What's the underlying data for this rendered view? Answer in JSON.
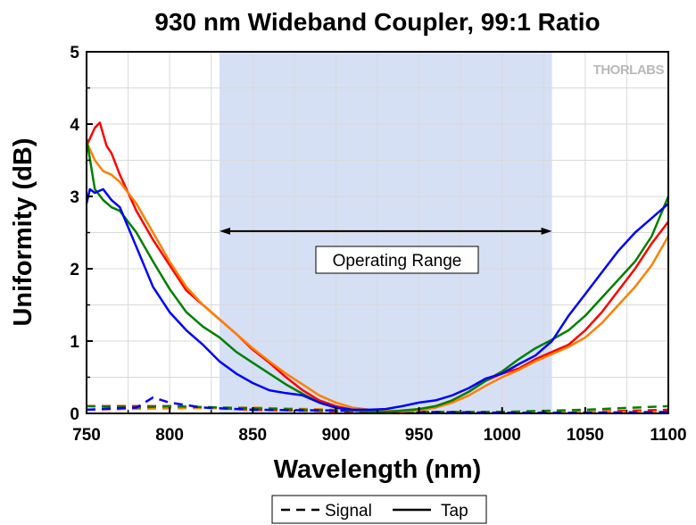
{
  "chart_data": {
    "type": "line",
    "title": "930 nm Wideband Coupler, 99:1 Ratio",
    "xlabel": "Wavelength (nm)",
    "ylabel": "Uniformity (dB)",
    "xlim": [
      750,
      1100
    ],
    "ylim": [
      0,
      5
    ],
    "xticks": [
      750,
      800,
      850,
      900,
      950,
      1000,
      1050,
      1100
    ],
    "yticks": [
      0,
      1,
      2,
      3,
      4,
      5
    ],
    "grid": true,
    "logo": "THORLABS",
    "shaded_region": {
      "x": [
        830,
        1030
      ],
      "color": "#d5e0f5"
    },
    "annotation": {
      "text": "Operating Range",
      "x": [
        830,
        1030
      ],
      "y": 2.52
    },
    "legend": {
      "position": "bottom",
      "entries": [
        {
          "label": "Signal",
          "style": "dashed"
        },
        {
          "label": "Tap",
          "style": "solid"
        }
      ]
    },
    "series": [
      {
        "color": "#ff0000",
        "style": "solid",
        "x": [
          750,
          755,
          758,
          762,
          765,
          770,
          775,
          780,
          790,
          800,
          810,
          820,
          830,
          840,
          850,
          860,
          870,
          880,
          890,
          900,
          910,
          920,
          930,
          940,
          950,
          960,
          970,
          980,
          990,
          1000,
          1010,
          1020,
          1030,
          1040,
          1050,
          1060,
          1070,
          1080,
          1090,
          1100
        ],
        "y": [
          3.7,
          3.95,
          4.02,
          3.7,
          3.6,
          3.3,
          3.05,
          2.8,
          2.4,
          2.05,
          1.7,
          1.5,
          1.3,
          1.1,
          0.88,
          0.7,
          0.5,
          0.32,
          0.18,
          0.1,
          0.05,
          0.03,
          0.02,
          0.03,
          0.05,
          0.1,
          0.18,
          0.3,
          0.45,
          0.55,
          0.62,
          0.75,
          0.85,
          0.95,
          1.15,
          1.4,
          1.7,
          2.0,
          2.35,
          2.65
        ]
      },
      {
        "color": "#ff7f00",
        "style": "solid",
        "x": [
          750,
          755,
          760,
          765,
          770,
          780,
          790,
          800,
          810,
          820,
          830,
          840,
          850,
          860,
          870,
          880,
          890,
          900,
          910,
          920,
          930,
          940,
          950,
          960,
          970,
          980,
          990,
          1000,
          1010,
          1020,
          1030,
          1040,
          1050,
          1060,
          1070,
          1080,
          1090,
          1100
        ],
        "y": [
          3.75,
          3.5,
          3.35,
          3.3,
          3.2,
          2.9,
          2.5,
          2.1,
          1.75,
          1.5,
          1.3,
          1.1,
          0.9,
          0.72,
          0.55,
          0.4,
          0.25,
          0.15,
          0.08,
          0.05,
          0.04,
          0.03,
          0.04,
          0.08,
          0.15,
          0.25,
          0.38,
          0.5,
          0.6,
          0.72,
          0.82,
          0.92,
          1.05,
          1.25,
          1.5,
          1.75,
          2.05,
          2.45
        ]
      },
      {
        "color": "#008000",
        "style": "solid",
        "x": [
          750,
          755,
          760,
          765,
          770,
          780,
          790,
          800,
          810,
          820,
          830,
          840,
          850,
          860,
          870,
          880,
          890,
          900,
          910,
          920,
          930,
          940,
          950,
          960,
          970,
          980,
          990,
          1000,
          1010,
          1020,
          1030,
          1040,
          1050,
          1060,
          1070,
          1080,
          1090,
          1100
        ],
        "y": [
          3.8,
          3.1,
          2.95,
          2.85,
          2.8,
          2.5,
          2.1,
          1.72,
          1.4,
          1.2,
          1.05,
          0.85,
          0.7,
          0.55,
          0.4,
          0.27,
          0.15,
          0.08,
          0.04,
          0.03,
          0.02,
          0.04,
          0.06,
          0.1,
          0.18,
          0.3,
          0.45,
          0.58,
          0.75,
          0.9,
          1.02,
          1.15,
          1.35,
          1.6,
          1.85,
          2.1,
          2.45,
          3.0
        ]
      },
      {
        "color": "#0000ff",
        "style": "solid",
        "x": [
          750,
          752,
          755,
          760,
          765,
          770,
          780,
          790,
          800,
          810,
          820,
          830,
          840,
          850,
          860,
          870,
          880,
          890,
          900,
          910,
          920,
          930,
          940,
          950,
          960,
          970,
          980,
          990,
          1000,
          1010,
          1020,
          1030,
          1040,
          1050,
          1060,
          1070,
          1080,
          1090,
          1100
        ],
        "y": [
          2.9,
          3.1,
          3.05,
          3.1,
          2.95,
          2.85,
          2.3,
          1.75,
          1.4,
          1.15,
          0.95,
          0.72,
          0.55,
          0.42,
          0.32,
          0.28,
          0.25,
          0.15,
          0.08,
          0.05,
          0.05,
          0.06,
          0.1,
          0.15,
          0.18,
          0.25,
          0.35,
          0.48,
          0.55,
          0.68,
          0.8,
          1.0,
          1.35,
          1.65,
          1.95,
          2.25,
          2.5,
          2.7,
          2.9
        ]
      },
      {
        "color": "#ff0000",
        "style": "dashed",
        "x": [
          750,
          800,
          850,
          900,
          950,
          1000,
          1050,
          1100
        ],
        "y": [
          0.1,
          0.1,
          0.05,
          0.03,
          0.02,
          0.02,
          0.02,
          0.05
        ]
      },
      {
        "color": "#ff7f00",
        "style": "dashed",
        "x": [
          750,
          800,
          850,
          900,
          950,
          1000,
          1050,
          1100
        ],
        "y": [
          0.05,
          0.07,
          0.08,
          0.05,
          0.02,
          0.01,
          0.02,
          0.02
        ]
      },
      {
        "color": "#008000",
        "style": "dashed",
        "x": [
          750,
          780,
          800,
          850,
          900,
          950,
          1000,
          1050,
          1100
        ],
        "y": [
          0.1,
          0.08,
          0.1,
          0.07,
          0.04,
          0.02,
          0.02,
          0.05,
          0.1
        ]
      },
      {
        "color": "#0000ff",
        "style": "dashed",
        "x": [
          750,
          780,
          790,
          800,
          820,
          850,
          900,
          950,
          1000,
          1050,
          1100
        ],
        "y": [
          0.05,
          0.08,
          0.22,
          0.15,
          0.08,
          0.05,
          0.04,
          0.02,
          0.01,
          0.01,
          0.02
        ]
      }
    ]
  }
}
